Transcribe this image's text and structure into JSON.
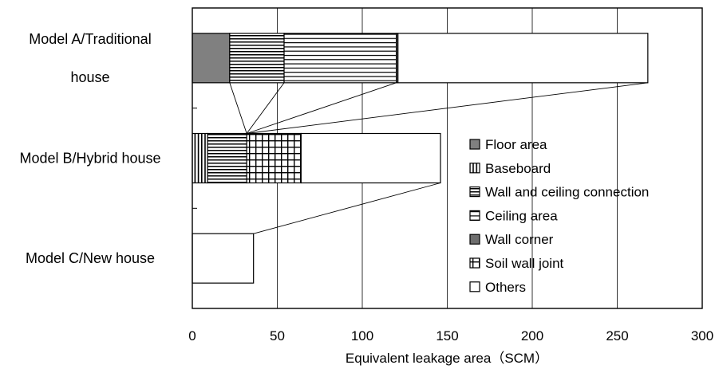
{
  "chart_data": {
    "type": "bar",
    "orientation": "horizontal",
    "stacked": true,
    "title": "",
    "xlabel": "Equivalent leakage area（SCM）",
    "ylabel": "",
    "xlim": [
      0,
      300
    ],
    "xticks": [
      0,
      50,
      100,
      150,
      200,
      250,
      300
    ],
    "grid": "vertical",
    "legend_position": "right",
    "categories": [
      {
        "lines": [
          "Model A/Traditional",
          "house"
        ]
      },
      {
        "lines": [
          "Model B/Hybrid house"
        ]
      },
      {
        "lines": [
          "Model C/New house"
        ]
      }
    ],
    "series": [
      {
        "name": "Floor area",
        "pattern": "solid-gray",
        "values": [
          22,
          0,
          0
        ]
      },
      {
        "name": "Baseboard",
        "pattern": "vertical-lines",
        "values": [
          0,
          9,
          0
        ]
      },
      {
        "name": "Wall and ceiling connection",
        "pattern": "horizontal-dense",
        "values": [
          32,
          23,
          0
        ]
      },
      {
        "name": "Ceiling area",
        "pattern": "horizontal-sparse",
        "values": [
          66,
          0,
          0
        ]
      },
      {
        "name": "Wall corner",
        "pattern": "dark-gray",
        "values": [
          1,
          0,
          0
        ]
      },
      {
        "name": "Soil wall joint",
        "pattern": "grid",
        "values": [
          0,
          32,
          0
        ]
      },
      {
        "name": "Others",
        "pattern": "white",
        "values": [
          147,
          82,
          36
        ]
      }
    ],
    "totals": [
      268,
      146,
      36
    ]
  }
}
